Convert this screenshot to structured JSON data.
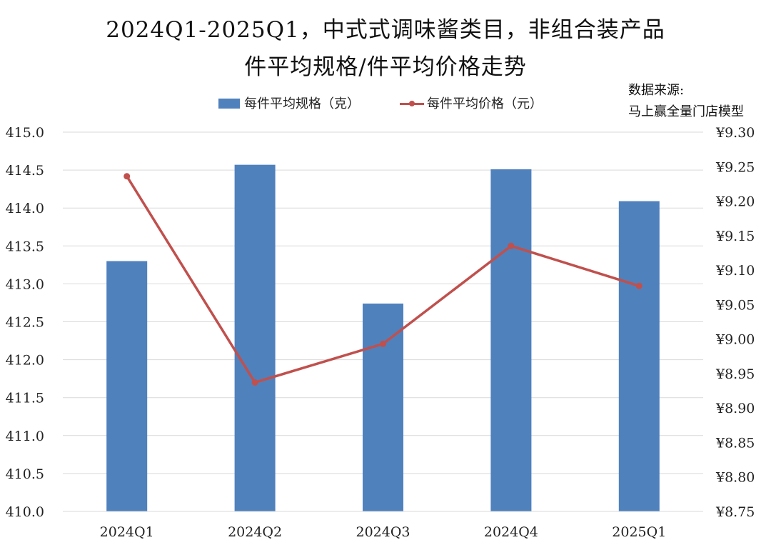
{
  "title": {
    "line1": "2024Q1-2025Q1，中式式调味酱类目，非组合装产品",
    "line2": "件平均规格/件平均价格走势"
  },
  "source": {
    "line1": "数据来源:",
    "line2": "马上赢全量门店模型"
  },
  "colors": {
    "bar": "#4F81BD",
    "line": "#C0504D",
    "grid": "#D9D9D9",
    "text": "#222222"
  },
  "chart_data": {
    "type": "bar",
    "categories": [
      "2024Q1",
      "2024Q2",
      "2024Q3",
      "2024Q4",
      "2025Q1"
    ],
    "series": [
      {
        "name": "每件平均规格（克）",
        "type": "bar",
        "axis": "left",
        "values": [
          413.3,
          414.57,
          412.74,
          414.51,
          414.09
        ]
      },
      {
        "name": "每件平均价格（元）",
        "type": "line",
        "axis": "right",
        "values": [
          9.236,
          8.937,
          8.993,
          9.135,
          9.077
        ]
      }
    ],
    "y_left": {
      "lim": [
        410.0,
        415.0
      ],
      "ticks": [
        "410.0",
        "410.5",
        "411.0",
        "411.5",
        "412.0",
        "412.5",
        "413.0",
        "413.5",
        "414.0",
        "414.5",
        "415.0"
      ]
    },
    "y_right": {
      "lim": [
        8.75,
        9.3
      ],
      "ticks": [
        "¥8.75",
        "¥8.80",
        "¥8.85",
        "¥8.90",
        "¥8.95",
        "¥9.00",
        "¥9.05",
        "¥9.10",
        "¥9.15",
        "¥9.20",
        "¥9.25",
        "¥9.30"
      ]
    },
    "grid": true,
    "legend_position": "top"
  }
}
